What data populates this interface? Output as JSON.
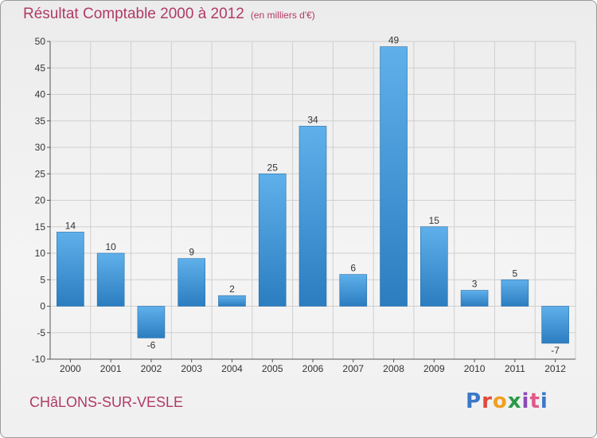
{
  "chart_data": {
    "type": "bar",
    "title": "Résultat Comptable 2000 à 2012",
    "subtitle": "(en milliers d'€)",
    "categories": [
      "2000",
      "2001",
      "2002",
      "2003",
      "2004",
      "2005",
      "2006",
      "2007",
      "2008",
      "2009",
      "2010",
      "2011",
      "2012"
    ],
    "values": [
      14,
      10,
      -6,
      9,
      2,
      25,
      34,
      6,
      49,
      15,
      3,
      5,
      -7
    ],
    "value_labels": [
      "14",
      "10",
      "-6",
      "9",
      "2",
      "25",
      "34",
      "6",
      "49",
      "15",
      "3",
      "5",
      "-7"
    ],
    "ylim": [
      -10,
      50
    ],
    "yticks": [
      -10,
      -5,
      0,
      5,
      10,
      15,
      20,
      25,
      30,
      35,
      40,
      45,
      50
    ],
    "ytick_labels": [
      "-10",
      "-5",
      "0",
      "5",
      "10",
      "15",
      "20",
      "25",
      "30",
      "35",
      "40",
      "45",
      "50"
    ],
    "xlabel": "",
    "ylabel": "",
    "grid": true
  },
  "footer": {
    "city": "CHâLONS-SUR-VESLE"
  },
  "logo": {
    "letters": [
      "P",
      "r",
      "o",
      "x",
      "i",
      "t",
      "i"
    ]
  },
  "colors": {
    "accent": "#b03a66",
    "bar_light": "#5dade8",
    "bar_dark": "#2a7bbd",
    "grid": "#cfcfcf"
  }
}
